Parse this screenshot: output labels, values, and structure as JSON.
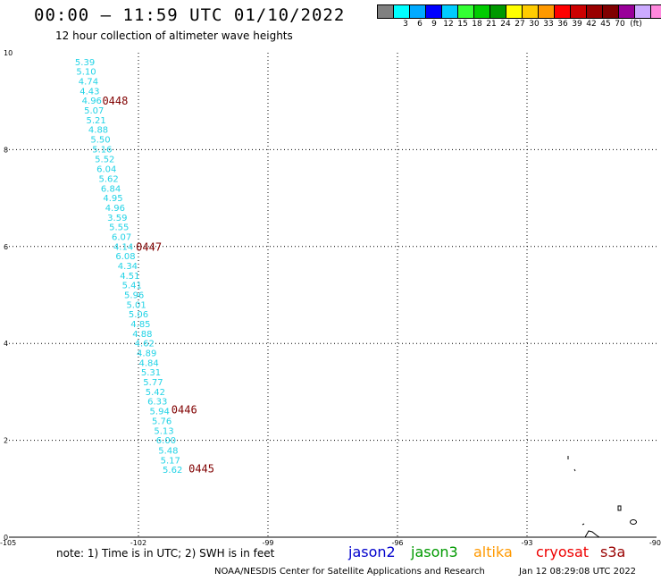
{
  "header": {
    "title": "00:00 – 11:59 UTC 01/10/2022",
    "subtitle": "12 hour collection of altimeter wave heights"
  },
  "colorbar": {
    "swatches": [
      "#808080",
      "#00ffff",
      "#00aaff",
      "#0000ff",
      "#00ccff",
      "#33ff33",
      "#00cc00",
      "#009900",
      "#ffff00",
      "#ffcc00",
      "#ff9900",
      "#ff0000",
      "#cc0000",
      "#990000",
      "#800000",
      "#990099",
      "#ccaaff",
      "#ff88dd",
      "#000000"
    ],
    "labels": [
      "3",
      "6",
      "9",
      "12",
      "15",
      "18",
      "21",
      "24",
      "27",
      "30",
      "33",
      "36",
      "39",
      "42",
      "45",
      "70",
      "(ft)"
    ]
  },
  "footer": {
    "note": "note:  1) Time is in UTC;  2) SWH is in feet",
    "credit": "NOAA/NESDIS Center for Satellite Applications and Research",
    "timestamp": "Jan 12 08:29:08 UTC 2022"
  },
  "satellites": [
    {
      "name": "jason2",
      "color": "#0000cc"
    },
    {
      "name": "jason3",
      "color": "#009900"
    },
    {
      "name": "altika",
      "color": "#ff9900"
    },
    {
      "name": "cryosat",
      "color": "#ee0000"
    },
    {
      "name": "s3a",
      "color": "#990000"
    }
  ],
  "chart_data": {
    "type": "scatter",
    "xlim": [
      -105,
      -90
    ],
    "ylim": [
      0,
      10
    ],
    "x_ticks": [
      -105,
      -102,
      -99,
      -96,
      -93,
      -90
    ],
    "y_ticks": [
      0,
      2,
      4,
      6,
      8,
      10
    ],
    "x_tick_labels": [
      "-105",
      "-102",
      "-99",
      "-96",
      "-93",
      "-90"
    ],
    "y_tick_labels": [
      "0",
      "2",
      "4",
      "6",
      "8",
      "10"
    ],
    "grid": true,
    "value_color": "#22d3e6",
    "series": [
      {
        "points": [
          {
            "x": -103.24,
            "y": 9.81,
            "v": "5.39"
          },
          {
            "x": -103.21,
            "y": 9.61,
            "v": "5.10"
          },
          {
            "x": -103.16,
            "y": 9.41,
            "v": "4.74"
          },
          {
            "x": -103.13,
            "y": 9.21,
            "v": "4.43"
          },
          {
            "x": -103.08,
            "y": 9.01,
            "v": "4.96"
          },
          {
            "x": -103.03,
            "y": 8.81,
            "v": "5.07"
          },
          {
            "x": -102.98,
            "y": 8.61,
            "v": "5.21"
          },
          {
            "x": -102.93,
            "y": 8.41,
            "v": "4.88"
          },
          {
            "x": -102.88,
            "y": 8.21,
            "v": "5.50"
          },
          {
            "x": -102.84,
            "y": 8.01,
            "v": "5.16"
          },
          {
            "x": -102.78,
            "y": 7.8,
            "v": "5.52"
          },
          {
            "x": -102.74,
            "y": 7.6,
            "v": "6.04"
          },
          {
            "x": -102.69,
            "y": 7.4,
            "v": "5.62"
          },
          {
            "x": -102.64,
            "y": 7.2,
            "v": "6.84"
          },
          {
            "x": -102.59,
            "y": 7.0,
            "v": "4.95"
          },
          {
            "x": -102.54,
            "y": 6.8,
            "v": "4.96"
          },
          {
            "x": -102.49,
            "y": 6.6,
            "v": "3.59"
          },
          {
            "x": -102.45,
            "y": 6.4,
            "v": "5.55"
          },
          {
            "x": -102.39,
            "y": 6.2,
            "v": "6.07"
          },
          {
            "x": -102.35,
            "y": 6.0,
            "v": "4.14"
          },
          {
            "x": -102.3,
            "y": 5.8,
            "v": "6.08"
          },
          {
            "x": -102.25,
            "y": 5.6,
            "v": "4.34"
          },
          {
            "x": -102.2,
            "y": 5.4,
            "v": "4.51"
          },
          {
            "x": -102.15,
            "y": 5.2,
            "v": "5.41"
          },
          {
            "x": -102.1,
            "y": 5.0,
            "v": "5.96"
          },
          {
            "x": -102.05,
            "y": 4.8,
            "v": "5.01"
          },
          {
            "x": -102.0,
            "y": 4.6,
            "v": "5.06"
          },
          {
            "x": -101.95,
            "y": 4.4,
            "v": "4.85"
          },
          {
            "x": -101.91,
            "y": 4.2,
            "v": "4.88"
          },
          {
            "x": -101.86,
            "y": 4.0,
            "v": "4.62"
          },
          {
            "x": -101.81,
            "y": 3.8,
            "v": "4.89"
          },
          {
            "x": -101.76,
            "y": 3.6,
            "v": "4.84"
          },
          {
            "x": -101.71,
            "y": 3.4,
            "v": "5.31"
          },
          {
            "x": -101.66,
            "y": 3.2,
            "v": "5.77"
          },
          {
            "x": -101.61,
            "y": 3.0,
            "v": "5.42"
          },
          {
            "x": -101.56,
            "y": 2.8,
            "v": "6.33"
          },
          {
            "x": -101.51,
            "y": 2.6,
            "v": "5.94"
          },
          {
            "x": -101.46,
            "y": 2.4,
            "v": "5.76"
          },
          {
            "x": -101.41,
            "y": 2.2,
            "v": "5.13"
          },
          {
            "x": -101.36,
            "y": 2.0,
            "v": "6.00"
          },
          {
            "x": -101.31,
            "y": 1.79,
            "v": "5.48"
          },
          {
            "x": -101.26,
            "y": 1.59,
            "v": "5.17"
          },
          {
            "x": -101.21,
            "y": 1.39,
            "v": "5.62"
          }
        ]
      }
    ],
    "pass_labels": [
      {
        "x": -102.54,
        "y": 9.0,
        "text": "0448"
      },
      {
        "x": -101.76,
        "y": 5.99,
        "text": "0447"
      },
      {
        "x": -100.94,
        "y": 2.63,
        "text": "0446"
      },
      {
        "x": -100.54,
        "y": 1.41,
        "text": "0445"
      }
    ]
  }
}
